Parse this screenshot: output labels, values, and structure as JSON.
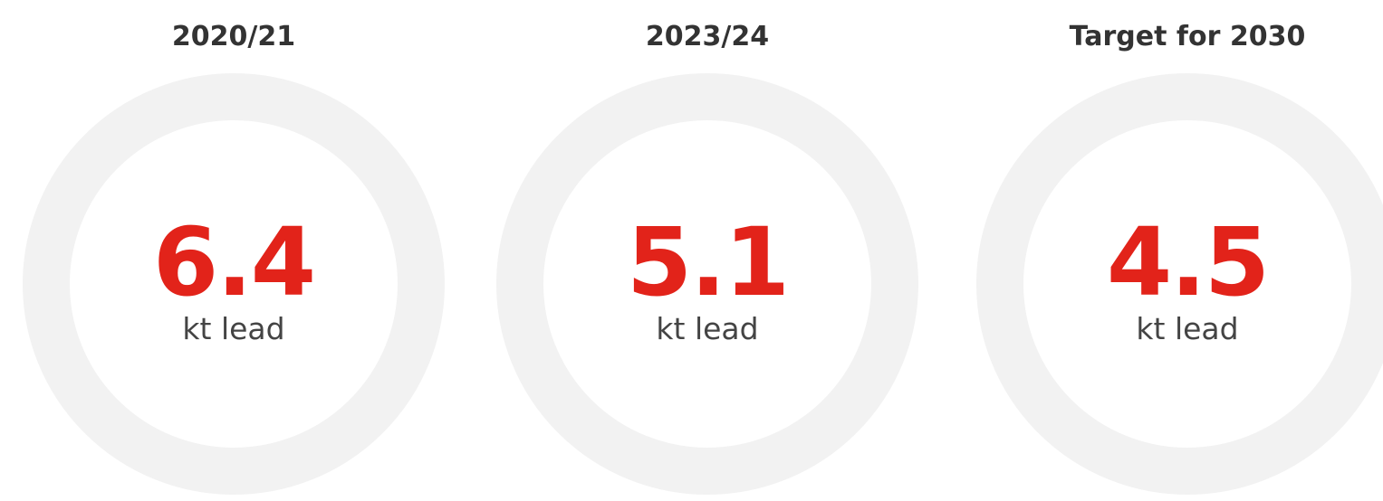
{
  "items": [
    {
      "heading": "2020/21",
      "value": 6.4,
      "unit": "kt lead"
    },
    {
      "heading": "2023/24",
      "value": 5.1,
      "unit": "kt lead"
    },
    {
      "heading": "Target for 2030",
      "value": 4.5,
      "unit": "kt lead"
    }
  ]
}
